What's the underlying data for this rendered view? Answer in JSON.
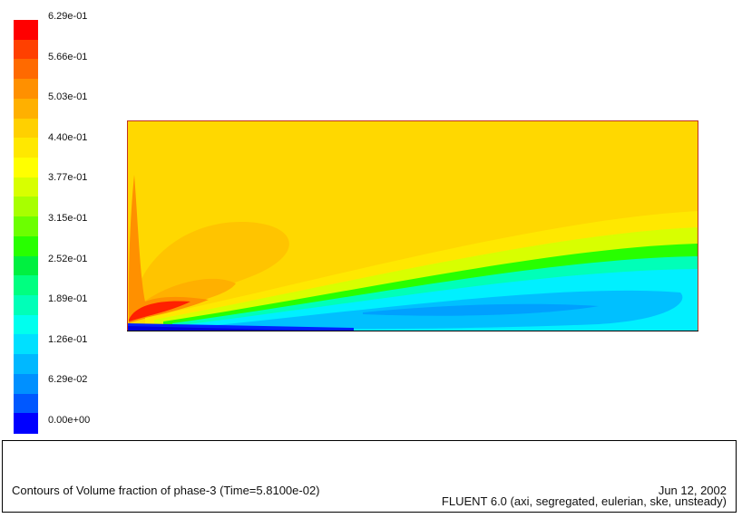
{
  "legend": {
    "tick_labels": [
      "6.29e-01",
      "5.66e-01",
      "5.03e-01",
      "4.40e-01",
      "3.77e-01",
      "3.15e-01",
      "2.52e-01",
      "1.89e-01",
      "1.26e-01",
      "6.29e-02",
      "0.00e+00"
    ],
    "band_colors": [
      "#ff0000",
      "#ff4000",
      "#ff6a00",
      "#ff9000",
      "#ffb000",
      "#ffd000",
      "#ffe800",
      "#ffff00",
      "#d8ff00",
      "#a8ff00",
      "#6cff00",
      "#28ff00",
      "#00f040",
      "#00ff80",
      "#00ffb8",
      "#00ffee",
      "#00e0ff",
      "#00b8ff",
      "#0090ff",
      "#0058ff",
      "#0000ff"
    ]
  },
  "plot": {
    "base_color": "#ffd800",
    "border_color": "#c03020"
  },
  "caption": {
    "title": "Contours of Volume fraction of phase-3  (Time=5.8100e-02)",
    "date": "Jun 12, 2002",
    "solver": "FLUENT 6.0 (axi, segregated, eulerian, ske, unsteady)"
  }
}
